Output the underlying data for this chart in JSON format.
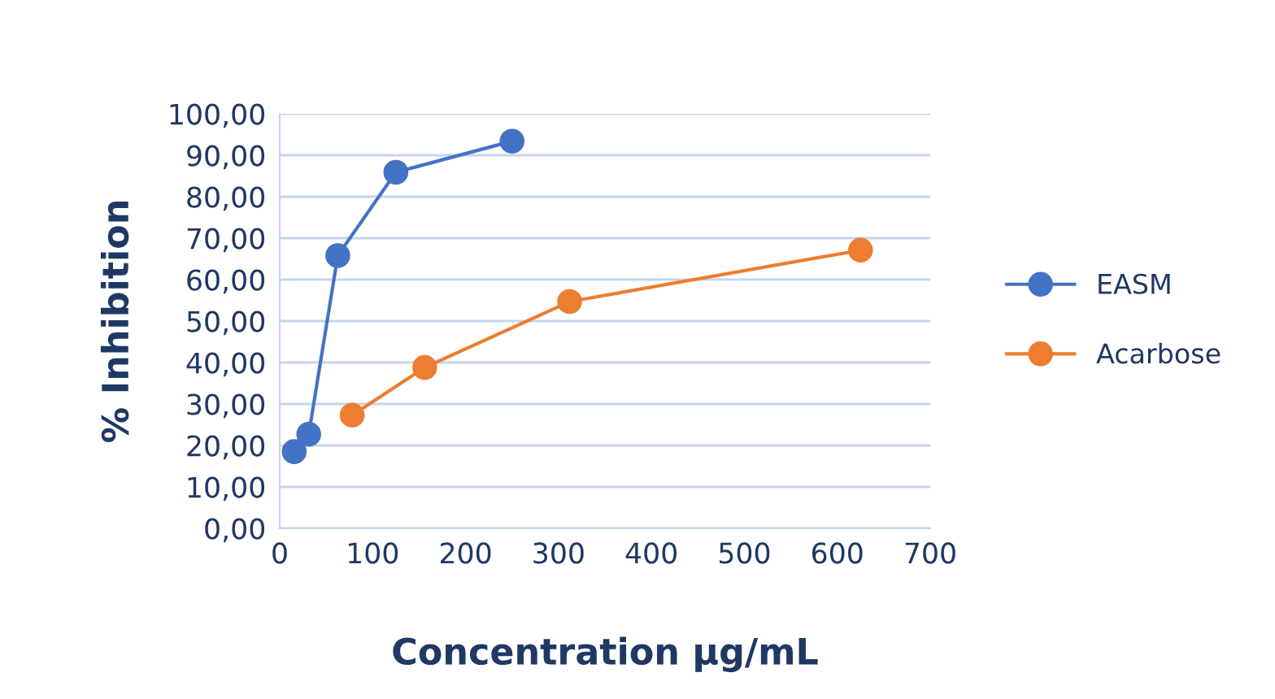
{
  "chart_data": {
    "type": "line",
    "xlabel": "Concentration µg/mL",
    "ylabel": "% Inhibition",
    "series": [
      {
        "name": "EASM",
        "color": "#4472c4",
        "x": [
          15.6,
          31.25,
          62.5,
          125,
          250
        ],
        "values": [
          18.5,
          22.7,
          65.8,
          85.9,
          93.4
        ]
      },
      {
        "name": "Acarbose",
        "color": "#ed7d31",
        "x": [
          78,
          156,
          312,
          625
        ],
        "values": [
          27.3,
          38.8,
          54.7,
          67.1
        ]
      }
    ],
    "xlim": [
      0,
      700
    ],
    "xticks": [
      0,
      100,
      200,
      300,
      400,
      500,
      600,
      700
    ],
    "ylim": [
      0,
      100
    ],
    "yticks": [
      {
        "value": 0,
        "label": "0,00"
      },
      {
        "value": 10,
        "label": "10,00"
      },
      {
        "value": 20,
        "label": "20,00"
      },
      {
        "value": 30,
        "label": "30,00"
      },
      {
        "value": 40,
        "label": "40,00"
      },
      {
        "value": 50,
        "label": "50,00"
      },
      {
        "value": 60,
        "label": "60,00"
      },
      {
        "value": 70,
        "label": "70,00"
      },
      {
        "value": 80,
        "label": "80,00"
      },
      {
        "value": 90,
        "label": "90,00"
      },
      {
        "value": 100,
        "label": "100,00"
      }
    ],
    "grid": "y",
    "legend": "right",
    "marker": "circle",
    "line_style": "solid"
  }
}
